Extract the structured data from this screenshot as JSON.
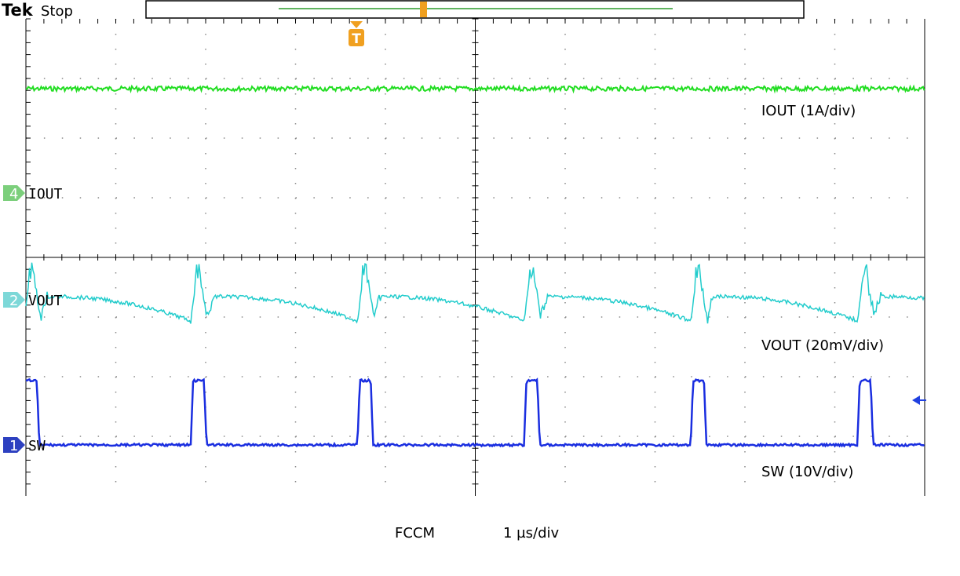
{
  "header": {
    "brand": "Tek",
    "status": "Stop"
  },
  "trigger": {
    "marker": "T"
  },
  "channels": [
    {
      "number": "4",
      "name": "IOUT",
      "scale": "IOUT (1A/div)"
    },
    {
      "number": "2",
      "name": "VOUT",
      "scale": "VOUT (20mV/div)"
    },
    {
      "number": "1",
      "name": "SW",
      "scale": "SW (10V/div)"
    }
  ],
  "footer": {
    "mode": "FCCM",
    "timebase": "1 µs/div"
  }
}
